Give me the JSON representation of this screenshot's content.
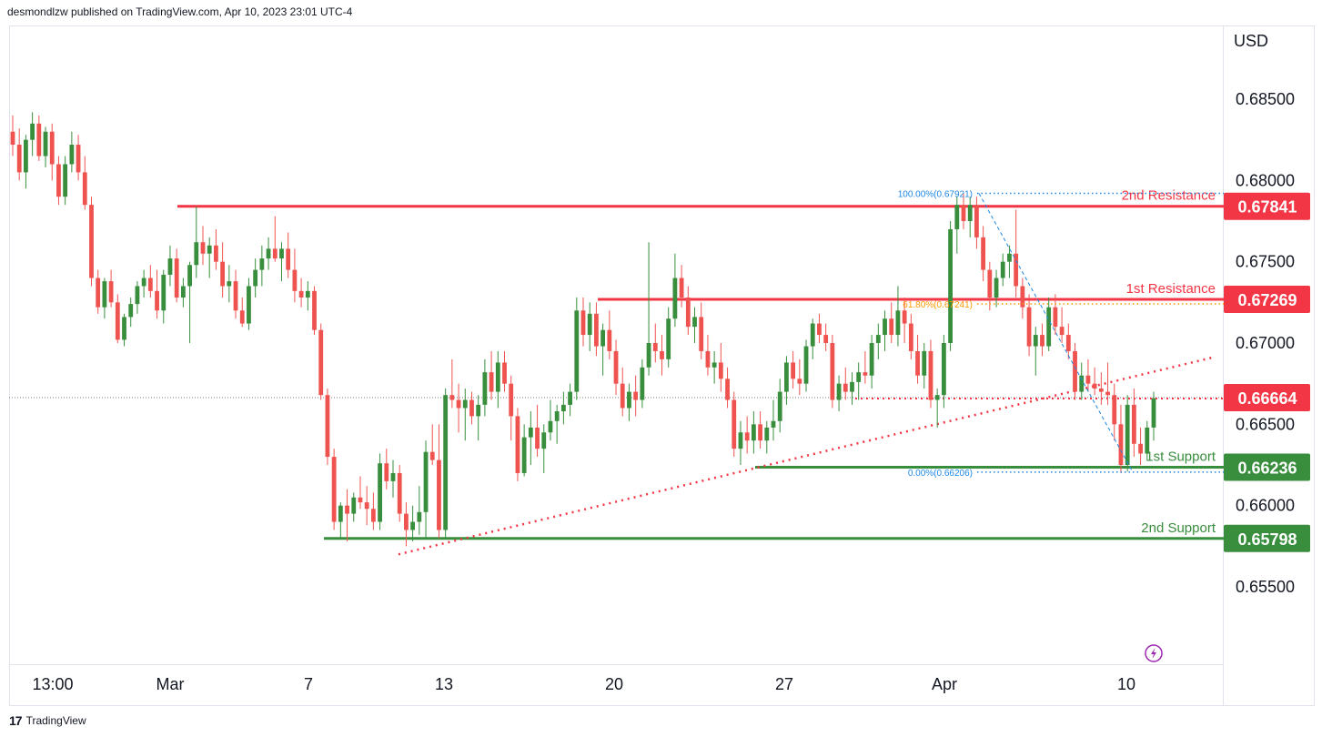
{
  "header": {
    "published": "desmondlzw published on TradingView.com, Apr 10, 2023 23:01 UTC-4"
  },
  "footer": {
    "brand": "TradingView",
    "logo": "tv-logo-icon"
  },
  "colors": {
    "up": "#388e3c",
    "down": "#ef5350",
    "resistance": "#f23645",
    "support": "#388e3c",
    "fib": "#1e88e5",
    "fib_mid": "#ff9800",
    "grid": "#e0e3eb",
    "crosshair_dotted": "#131722"
  },
  "chart_data": {
    "type": "candlestick",
    "currency": "USD",
    "y_ticks": [
      "0.68500",
      "0.68000",
      "0.67500",
      "0.67000",
      "0.66500",
      "0.66000",
      "0.65500"
    ],
    "ylim": [
      0.65,
      0.6885
    ],
    "x_ticks": [
      "13:00",
      "Mar",
      "7",
      "13",
      "20",
      "27",
      "Apr",
      "10"
    ],
    "levels": [
      {
        "name": "2nd Resistance",
        "value": 0.67841,
        "label": "0.67841",
        "kind": "resistance"
      },
      {
        "name": "1st Resistance",
        "value": 0.67269,
        "label": "0.67269",
        "kind": "resistance"
      },
      {
        "name": "1st Support",
        "value": 0.66236,
        "label": "0.66236",
        "kind": "support"
      },
      {
        "name": "2nd Support",
        "value": 0.65798,
        "label": "0.65798",
        "kind": "support"
      }
    ],
    "last_price": {
      "value": 0.66664,
      "label": "0.66664"
    },
    "fib": {
      "top": {
        "label": "100.00%(0.67921)",
        "value": 0.67921
      },
      "mid": {
        "label": "61.80%(0.67241)",
        "value": 0.67241
      },
      "bottom": {
        "label": "0.00%(0.66206)",
        "value": 0.66206
      }
    },
    "trendline": {
      "from": 0.657,
      "to": 0.6691
    },
    "candles": [
      {
        "o": 0.683,
        "h": 0.684,
        "l": 0.6815,
        "c": 0.6822
      },
      {
        "o": 0.6822,
        "h": 0.6832,
        "l": 0.68,
        "c": 0.6805
      },
      {
        "o": 0.6805,
        "h": 0.6828,
        "l": 0.6795,
        "c": 0.6825
      },
      {
        "o": 0.6825,
        "h": 0.6842,
        "l": 0.6815,
        "c": 0.6835
      },
      {
        "o": 0.6835,
        "h": 0.684,
        "l": 0.6812,
        "c": 0.6815
      },
      {
        "o": 0.6815,
        "h": 0.6833,
        "l": 0.6808,
        "c": 0.683
      },
      {
        "o": 0.683,
        "h": 0.6835,
        "l": 0.68,
        "c": 0.681
      },
      {
        "o": 0.681,
        "h": 0.6815,
        "l": 0.6785,
        "c": 0.679
      },
      {
        "o": 0.679,
        "h": 0.6815,
        "l": 0.6785,
        "c": 0.681
      },
      {
        "o": 0.681,
        "h": 0.683,
        "l": 0.6805,
        "c": 0.6822
      },
      {
        "o": 0.6822,
        "h": 0.6828,
        "l": 0.68,
        "c": 0.6805
      },
      {
        "o": 0.6805,
        "h": 0.6815,
        "l": 0.6782,
        "c": 0.6785
      },
      {
        "o": 0.6785,
        "h": 0.679,
        "l": 0.6735,
        "c": 0.674
      },
      {
        "o": 0.674,
        "h": 0.6745,
        "l": 0.6718,
        "c": 0.6722
      },
      {
        "o": 0.6722,
        "h": 0.674,
        "l": 0.6715,
        "c": 0.6738
      },
      {
        "o": 0.6738,
        "h": 0.6745,
        "l": 0.6722,
        "c": 0.6725
      },
      {
        "o": 0.6725,
        "h": 0.673,
        "l": 0.67,
        "c": 0.6702
      },
      {
        "o": 0.6702,
        "h": 0.6718,
        "l": 0.6698,
        "c": 0.6716
      },
      {
        "o": 0.6716,
        "h": 0.6728,
        "l": 0.671,
        "c": 0.6724
      },
      {
        "o": 0.6724,
        "h": 0.6738,
        "l": 0.6718,
        "c": 0.6735
      },
      {
        "o": 0.6735,
        "h": 0.6745,
        "l": 0.6728,
        "c": 0.674
      },
      {
        "o": 0.674,
        "h": 0.6748,
        "l": 0.6728,
        "c": 0.6732
      },
      {
        "o": 0.6732,
        "h": 0.6745,
        "l": 0.6715,
        "c": 0.672
      },
      {
        "o": 0.672,
        "h": 0.6745,
        "l": 0.6712,
        "c": 0.6742
      },
      {
        "o": 0.6742,
        "h": 0.676,
        "l": 0.6735,
        "c": 0.6752
      },
      {
        "o": 0.6752,
        "h": 0.6758,
        "l": 0.6725,
        "c": 0.6728
      },
      {
        "o": 0.6728,
        "h": 0.674,
        "l": 0.6722,
        "c": 0.6735
      },
      {
        "o": 0.6735,
        "h": 0.675,
        "l": 0.67,
        "c": 0.6748
      },
      {
        "o": 0.6748,
        "h": 0.6784,
        "l": 0.674,
        "c": 0.6762
      },
      {
        "o": 0.6762,
        "h": 0.6772,
        "l": 0.6748,
        "c": 0.6755
      },
      {
        "o": 0.6755,
        "h": 0.6765,
        "l": 0.674,
        "c": 0.676
      },
      {
        "o": 0.676,
        "h": 0.677,
        "l": 0.6745,
        "c": 0.675
      },
      {
        "o": 0.675,
        "h": 0.6762,
        "l": 0.6728,
        "c": 0.6735
      },
      {
        "o": 0.6735,
        "h": 0.6748,
        "l": 0.6725,
        "c": 0.6738
      },
      {
        "o": 0.6738,
        "h": 0.6745,
        "l": 0.6715,
        "c": 0.672
      },
      {
        "o": 0.672,
        "h": 0.6728,
        "l": 0.671,
        "c": 0.6712
      },
      {
        "o": 0.6712,
        "h": 0.674,
        "l": 0.6708,
        "c": 0.6735
      },
      {
        "o": 0.6735,
        "h": 0.6752,
        "l": 0.6728,
        "c": 0.6745
      },
      {
        "o": 0.6745,
        "h": 0.676,
        "l": 0.6735,
        "c": 0.6752
      },
      {
        "o": 0.6752,
        "h": 0.6765,
        "l": 0.6745,
        "c": 0.6758
      },
      {
        "o": 0.6758,
        "h": 0.6778,
        "l": 0.675,
        "c": 0.6752
      },
      {
        "o": 0.6752,
        "h": 0.6762,
        "l": 0.6738,
        "c": 0.6758
      },
      {
        "o": 0.6758,
        "h": 0.6768,
        "l": 0.674,
        "c": 0.6745
      },
      {
        "o": 0.6745,
        "h": 0.6758,
        "l": 0.6725,
        "c": 0.6732
      },
      {
        "o": 0.6732,
        "h": 0.674,
        "l": 0.6722,
        "c": 0.6728
      },
      {
        "o": 0.6728,
        "h": 0.6738,
        "l": 0.672,
        "c": 0.6732
      },
      {
        "o": 0.6732,
        "h": 0.6735,
        "l": 0.6705,
        "c": 0.6708
      },
      {
        "o": 0.6708,
        "h": 0.6712,
        "l": 0.6665,
        "c": 0.6668
      },
      {
        "o": 0.6668,
        "h": 0.6672,
        "l": 0.6625,
        "c": 0.663
      },
      {
        "o": 0.663,
        "h": 0.6635,
        "l": 0.6585,
        "c": 0.659
      },
      {
        "o": 0.659,
        "h": 0.6602,
        "l": 0.658,
        "c": 0.66
      },
      {
        "o": 0.66,
        "h": 0.661,
        "l": 0.6578,
        "c": 0.6595
      },
      {
        "o": 0.6595,
        "h": 0.6608,
        "l": 0.659,
        "c": 0.6605
      },
      {
        "o": 0.6605,
        "h": 0.6618,
        "l": 0.6598,
        "c": 0.6602
      },
      {
        "o": 0.6602,
        "h": 0.6612,
        "l": 0.6588,
        "c": 0.6598
      },
      {
        "o": 0.6598,
        "h": 0.6608,
        "l": 0.6585,
        "c": 0.659
      },
      {
        "o": 0.659,
        "h": 0.6632,
        "l": 0.6585,
        "c": 0.6626
      },
      {
        "o": 0.6626,
        "h": 0.6635,
        "l": 0.661,
        "c": 0.6615
      },
      {
        "o": 0.6615,
        "h": 0.6628,
        "l": 0.6605,
        "c": 0.662
      },
      {
        "o": 0.662,
        "h": 0.6625,
        "l": 0.659,
        "c": 0.6595
      },
      {
        "o": 0.6595,
        "h": 0.6602,
        "l": 0.6575,
        "c": 0.6585
      },
      {
        "o": 0.6585,
        "h": 0.66,
        "l": 0.6578,
        "c": 0.659
      },
      {
        "o": 0.659,
        "h": 0.6612,
        "l": 0.6582,
        "c": 0.6596
      },
      {
        "o": 0.6596,
        "h": 0.664,
        "l": 0.658,
        "c": 0.6633
      },
      {
        "o": 0.6633,
        "h": 0.665,
        "l": 0.6625,
        "c": 0.6628
      },
      {
        "o": 0.6628,
        "h": 0.665,
        "l": 0.658,
        "c": 0.6585
      },
      {
        "o": 0.6585,
        "h": 0.6672,
        "l": 0.658,
        "c": 0.6668
      },
      {
        "o": 0.6668,
        "h": 0.669,
        "l": 0.666,
        "c": 0.6665
      },
      {
        "o": 0.6665,
        "h": 0.6675,
        "l": 0.6645,
        "c": 0.666
      },
      {
        "o": 0.666,
        "h": 0.6672,
        "l": 0.664,
        "c": 0.6665
      },
      {
        "o": 0.6665,
        "h": 0.667,
        "l": 0.665,
        "c": 0.6655
      },
      {
        "o": 0.6655,
        "h": 0.6668,
        "l": 0.664,
        "c": 0.6662
      },
      {
        "o": 0.6662,
        "h": 0.669,
        "l": 0.6655,
        "c": 0.6682
      },
      {
        "o": 0.6682,
        "h": 0.6695,
        "l": 0.6665,
        "c": 0.667
      },
      {
        "o": 0.667,
        "h": 0.6695,
        "l": 0.666,
        "c": 0.6688
      },
      {
        "o": 0.6688,
        "h": 0.6695,
        "l": 0.667,
        "c": 0.6675
      },
      {
        "o": 0.6675,
        "h": 0.668,
        "l": 0.664,
        "c": 0.6655
      },
      {
        "o": 0.6655,
        "h": 0.666,
        "l": 0.6615,
        "c": 0.662
      },
      {
        "o": 0.662,
        "h": 0.665,
        "l": 0.6618,
        "c": 0.6642
      },
      {
        "o": 0.6642,
        "h": 0.6658,
        "l": 0.6625,
        "c": 0.6648
      },
      {
        "o": 0.6648,
        "h": 0.6662,
        "l": 0.663,
        "c": 0.6635
      },
      {
        "o": 0.6635,
        "h": 0.665,
        "l": 0.662,
        "c": 0.6645
      },
      {
        "o": 0.6645,
        "h": 0.6665,
        "l": 0.664,
        "c": 0.6652
      },
      {
        "o": 0.6652,
        "h": 0.6662,
        "l": 0.6638,
        "c": 0.6658
      },
      {
        "o": 0.6658,
        "h": 0.667,
        "l": 0.665,
        "c": 0.6662
      },
      {
        "o": 0.6662,
        "h": 0.6675,
        "l": 0.6655,
        "c": 0.667
      },
      {
        "o": 0.667,
        "h": 0.6728,
        "l": 0.6665,
        "c": 0.672
      },
      {
        "o": 0.672,
        "h": 0.6728,
        "l": 0.6698,
        "c": 0.6705
      },
      {
        "o": 0.6705,
        "h": 0.6725,
        "l": 0.6695,
        "c": 0.6718
      },
      {
        "o": 0.6718,
        "h": 0.6725,
        "l": 0.6692,
        "c": 0.6698
      },
      {
        "o": 0.6698,
        "h": 0.6712,
        "l": 0.668,
        "c": 0.6708
      },
      {
        "o": 0.6708,
        "h": 0.672,
        "l": 0.669,
        "c": 0.6695
      },
      {
        "o": 0.6695,
        "h": 0.6702,
        "l": 0.6668,
        "c": 0.6675
      },
      {
        "o": 0.6675,
        "h": 0.6685,
        "l": 0.6655,
        "c": 0.666
      },
      {
        "o": 0.666,
        "h": 0.6675,
        "l": 0.6652,
        "c": 0.667
      },
      {
        "o": 0.667,
        "h": 0.668,
        "l": 0.6655,
        "c": 0.6665
      },
      {
        "o": 0.6665,
        "h": 0.669,
        "l": 0.666,
        "c": 0.6685
      },
      {
        "o": 0.6685,
        "h": 0.6762,
        "l": 0.668,
        "c": 0.67
      },
      {
        "o": 0.67,
        "h": 0.6712,
        "l": 0.6688,
        "c": 0.6695
      },
      {
        "o": 0.6695,
        "h": 0.6705,
        "l": 0.668,
        "c": 0.669
      },
      {
        "o": 0.669,
        "h": 0.6722,
        "l": 0.6685,
        "c": 0.6715
      },
      {
        "o": 0.6715,
        "h": 0.6755,
        "l": 0.671,
        "c": 0.674
      },
      {
        "o": 0.674,
        "h": 0.6748,
        "l": 0.6722,
        "c": 0.6728
      },
      {
        "o": 0.6728,
        "h": 0.6735,
        "l": 0.6705,
        "c": 0.671
      },
      {
        "o": 0.671,
        "h": 0.6722,
        "l": 0.67,
        "c": 0.6716
      },
      {
        "o": 0.6716,
        "h": 0.6725,
        "l": 0.669,
        "c": 0.6695
      },
      {
        "o": 0.6695,
        "h": 0.6705,
        "l": 0.668,
        "c": 0.6685
      },
      {
        "o": 0.6685,
        "h": 0.6695,
        "l": 0.6675,
        "c": 0.6688
      },
      {
        "o": 0.6688,
        "h": 0.67,
        "l": 0.667,
        "c": 0.6678
      },
      {
        "o": 0.6678,
        "h": 0.6685,
        "l": 0.666,
        "c": 0.6665
      },
      {
        "o": 0.6665,
        "h": 0.667,
        "l": 0.663,
        "c": 0.6635
      },
      {
        "o": 0.6635,
        "h": 0.6652,
        "l": 0.6625,
        "c": 0.6645
      },
      {
        "o": 0.6645,
        "h": 0.6655,
        "l": 0.6632,
        "c": 0.664
      },
      {
        "o": 0.664,
        "h": 0.6658,
        "l": 0.6632,
        "c": 0.665
      },
      {
        "o": 0.665,
        "h": 0.6658,
        "l": 0.6635,
        "c": 0.664
      },
      {
        "o": 0.664,
        "h": 0.6652,
        "l": 0.6632,
        "c": 0.6648
      },
      {
        "o": 0.6648,
        "h": 0.6665,
        "l": 0.664,
        "c": 0.6652
      },
      {
        "o": 0.6652,
        "h": 0.6678,
        "l": 0.6645,
        "c": 0.667
      },
      {
        "o": 0.667,
        "h": 0.6692,
        "l": 0.6662,
        "c": 0.6688
      },
      {
        "o": 0.6688,
        "h": 0.6695,
        "l": 0.6672,
        "c": 0.6678
      },
      {
        "o": 0.6678,
        "h": 0.669,
        "l": 0.6668,
        "c": 0.6675
      },
      {
        "o": 0.6675,
        "h": 0.6702,
        "l": 0.667,
        "c": 0.6698
      },
      {
        "o": 0.6698,
        "h": 0.6715,
        "l": 0.669,
        "c": 0.6712
      },
      {
        "o": 0.6712,
        "h": 0.6718,
        "l": 0.67,
        "c": 0.6705
      },
      {
        "o": 0.6705,
        "h": 0.6712,
        "l": 0.6695,
        "c": 0.67
      },
      {
        "o": 0.67,
        "h": 0.6705,
        "l": 0.666,
        "c": 0.6665
      },
      {
        "o": 0.6665,
        "h": 0.668,
        "l": 0.6658,
        "c": 0.6675
      },
      {
        "o": 0.6675,
        "h": 0.6685,
        "l": 0.6665,
        "c": 0.667
      },
      {
        "o": 0.667,
        "h": 0.6682,
        "l": 0.6662,
        "c": 0.6676
      },
      {
        "o": 0.6676,
        "h": 0.6688,
        "l": 0.6665,
        "c": 0.6682
      },
      {
        "o": 0.6682,
        "h": 0.6695,
        "l": 0.6675,
        "c": 0.668
      },
      {
        "o": 0.668,
        "h": 0.6705,
        "l": 0.6672,
        "c": 0.67
      },
      {
        "o": 0.67,
        "h": 0.6712,
        "l": 0.669,
        "c": 0.6705
      },
      {
        "o": 0.6705,
        "h": 0.672,
        "l": 0.6695,
        "c": 0.6715
      },
      {
        "o": 0.6715,
        "h": 0.6725,
        "l": 0.67,
        "c": 0.6705
      },
      {
        "o": 0.6705,
        "h": 0.6735,
        "l": 0.6698,
        "c": 0.672
      },
      {
        "o": 0.672,
        "h": 0.6728,
        "l": 0.67,
        "c": 0.6712
      },
      {
        "o": 0.6712,
        "h": 0.6718,
        "l": 0.669,
        "c": 0.6695
      },
      {
        "o": 0.6695,
        "h": 0.6705,
        "l": 0.6675,
        "c": 0.668
      },
      {
        "o": 0.668,
        "h": 0.67,
        "l": 0.6672,
        "c": 0.6695
      },
      {
        "o": 0.6695,
        "h": 0.6702,
        "l": 0.666,
        "c": 0.6665
      },
      {
        "o": 0.6665,
        "h": 0.6672,
        "l": 0.6648,
        "c": 0.6668
      },
      {
        "o": 0.6668,
        "h": 0.6705,
        "l": 0.666,
        "c": 0.67
      },
      {
        "o": 0.67,
        "h": 0.6775,
        "l": 0.6695,
        "c": 0.677
      },
      {
        "o": 0.677,
        "h": 0.679,
        "l": 0.6755,
        "c": 0.6785
      },
      {
        "o": 0.6785,
        "h": 0.6792,
        "l": 0.677,
        "c": 0.6775
      },
      {
        "o": 0.6775,
        "h": 0.679,
        "l": 0.6765,
        "c": 0.6785
      },
      {
        "o": 0.6785,
        "h": 0.679,
        "l": 0.6758,
        "c": 0.6765
      },
      {
        "o": 0.6765,
        "h": 0.6772,
        "l": 0.6738,
        "c": 0.6745
      },
      {
        "o": 0.6745,
        "h": 0.675,
        "l": 0.672,
        "c": 0.6728
      },
      {
        "o": 0.6728,
        "h": 0.6745,
        "l": 0.6722,
        "c": 0.674
      },
      {
        "o": 0.674,
        "h": 0.6755,
        "l": 0.6735,
        "c": 0.675
      },
      {
        "o": 0.675,
        "h": 0.676,
        "l": 0.674,
        "c": 0.6755
      },
      {
        "o": 0.6755,
        "h": 0.6782,
        "l": 0.6728,
        "c": 0.6735
      },
      {
        "o": 0.6735,
        "h": 0.674,
        "l": 0.6715,
        "c": 0.6722
      },
      {
        "o": 0.6722,
        "h": 0.673,
        "l": 0.6692,
        "c": 0.6698
      },
      {
        "o": 0.6698,
        "h": 0.671,
        "l": 0.668,
        "c": 0.6705
      },
      {
        "o": 0.6705,
        "h": 0.6712,
        "l": 0.6692,
        "c": 0.6698
      },
      {
        "o": 0.6698,
        "h": 0.6728,
        "l": 0.6695,
        "c": 0.6722
      },
      {
        "o": 0.6722,
        "h": 0.673,
        "l": 0.6705,
        "c": 0.671
      },
      {
        "o": 0.671,
        "h": 0.6722,
        "l": 0.67,
        "c": 0.6705
      },
      {
        "o": 0.6705,
        "h": 0.6712,
        "l": 0.669,
        "c": 0.6695
      },
      {
        "o": 0.6695,
        "h": 0.67,
        "l": 0.6665,
        "c": 0.667
      },
      {
        "o": 0.667,
        "h": 0.6688,
        "l": 0.6665,
        "c": 0.668
      },
      {
        "o": 0.668,
        "h": 0.669,
        "l": 0.667,
        "c": 0.6675
      },
      {
        "o": 0.6675,
        "h": 0.6685,
        "l": 0.6668,
        "c": 0.6672
      },
      {
        "o": 0.6672,
        "h": 0.6682,
        "l": 0.6662,
        "c": 0.667
      },
      {
        "o": 0.667,
        "h": 0.6688,
        "l": 0.6662,
        "c": 0.6668
      },
      {
        "o": 0.6668,
        "h": 0.6675,
        "l": 0.664,
        "c": 0.665
      },
      {
        "o": 0.665,
        "h": 0.6662,
        "l": 0.662,
        "c": 0.6625
      },
      {
        "o": 0.6625,
        "h": 0.6668,
        "l": 0.6621,
        "c": 0.6662
      },
      {
        "o": 0.6662,
        "h": 0.6672,
        "l": 0.663,
        "c": 0.6638
      },
      {
        "o": 0.6638,
        "h": 0.6648,
        "l": 0.6625,
        "c": 0.6632
      },
      {
        "o": 0.6632,
        "h": 0.6652,
        "l": 0.6628,
        "c": 0.6648
      },
      {
        "o": 0.6648,
        "h": 0.667,
        "l": 0.664,
        "c": 0.6666
      }
    ]
  }
}
